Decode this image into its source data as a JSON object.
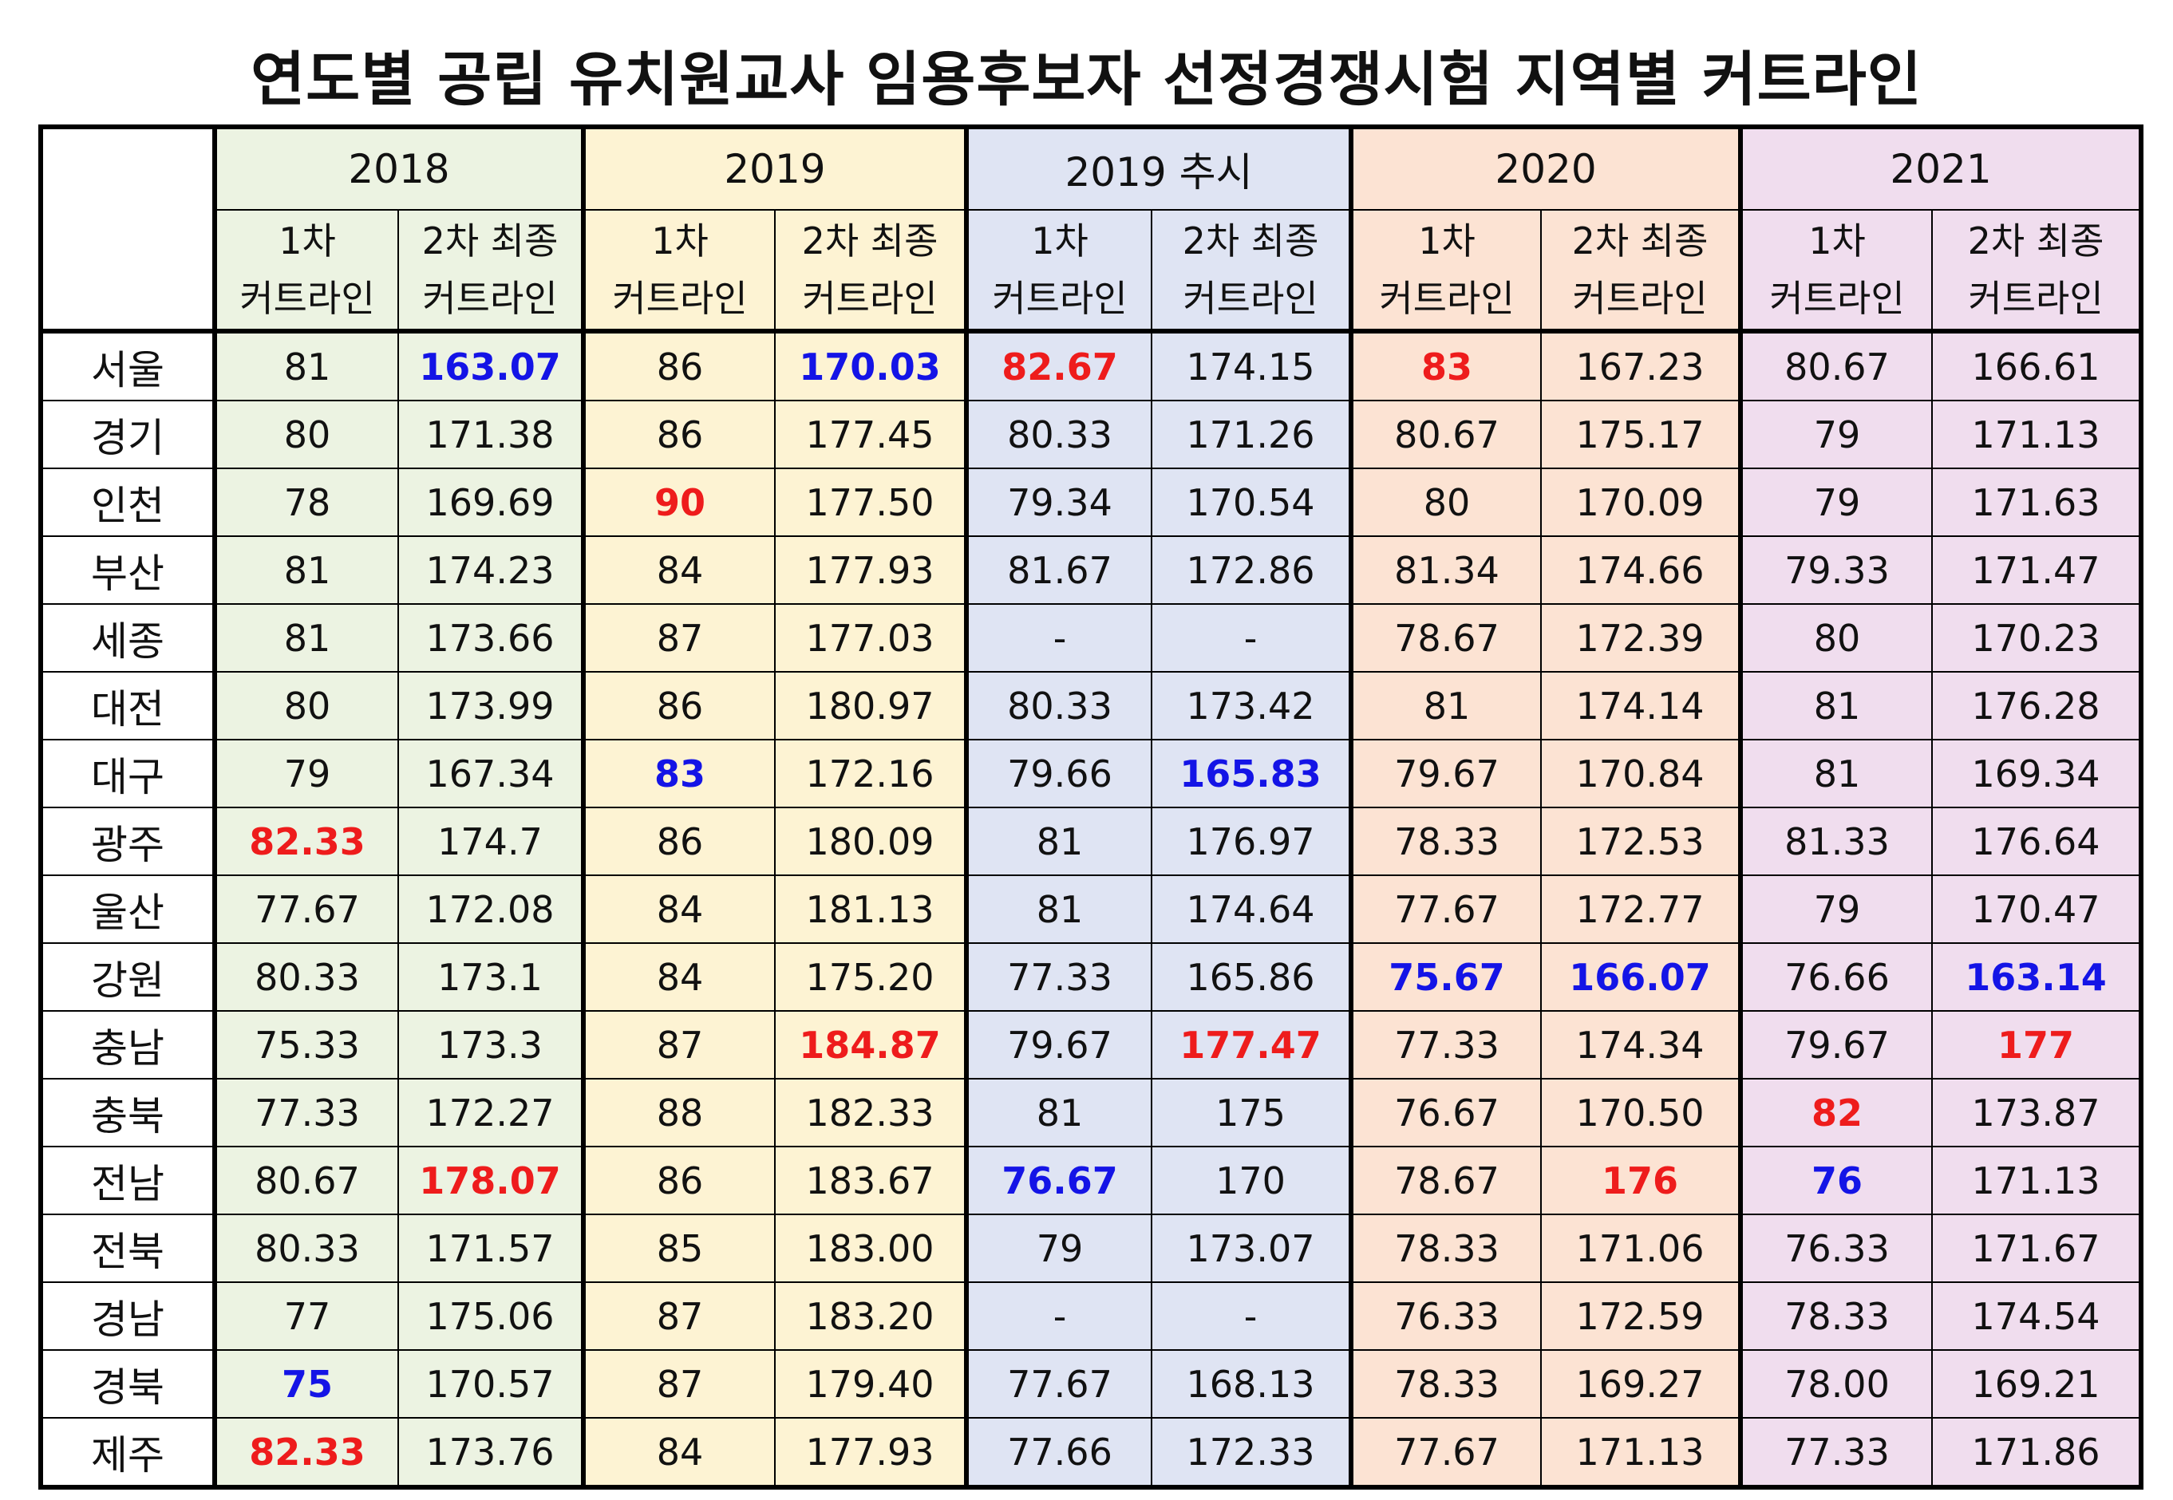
{
  "title": "연도별 공립 유치원교사 임용후보자 선정경쟁시험 지역별 커트라인",
  "years": [
    "2018",
    "2019",
    "2019 추시",
    "2020",
    "2021"
  ],
  "sub_headers": {
    "first_line1": "1차",
    "first_line2": "커트라인",
    "second_line1": "2차 최종",
    "second_line2": "커트라인"
  },
  "colors": {
    "col_2018": "#ecf3e2",
    "col_2019": "#fdf3d3",
    "col_2019_extra": "#dfe4f3",
    "col_2020": "#fce3d3",
    "col_2021": "#f0ddee",
    "highlight_max": "#ee1c1c",
    "highlight_min": "#1414e6"
  },
  "rows": [
    {
      "region": "서울",
      "values": [
        {
          "v": "81"
        },
        {
          "v": "163.07",
          "h": "blue"
        },
        {
          "v": "86"
        },
        {
          "v": "170.03",
          "h": "blue"
        },
        {
          "v": "82.67",
          "h": "red"
        },
        {
          "v": "174.15"
        },
        {
          "v": "83",
          "h": "red"
        },
        {
          "v": "167.23"
        },
        {
          "v": "80.67"
        },
        {
          "v": "166.61"
        }
      ]
    },
    {
      "region": "경기",
      "values": [
        {
          "v": "80"
        },
        {
          "v": "171.38"
        },
        {
          "v": "86"
        },
        {
          "v": "177.45"
        },
        {
          "v": "80.33"
        },
        {
          "v": "171.26"
        },
        {
          "v": "80.67"
        },
        {
          "v": "175.17"
        },
        {
          "v": "79"
        },
        {
          "v": "171.13"
        }
      ]
    },
    {
      "region": "인천",
      "values": [
        {
          "v": "78"
        },
        {
          "v": "169.69"
        },
        {
          "v": "90",
          "h": "red"
        },
        {
          "v": "177.50"
        },
        {
          "v": "79.34"
        },
        {
          "v": "170.54"
        },
        {
          "v": "80"
        },
        {
          "v": "170.09"
        },
        {
          "v": "79"
        },
        {
          "v": "171.63"
        }
      ]
    },
    {
      "region": "부산",
      "values": [
        {
          "v": "81"
        },
        {
          "v": "174.23"
        },
        {
          "v": "84"
        },
        {
          "v": "177.93"
        },
        {
          "v": "81.67"
        },
        {
          "v": "172.86"
        },
        {
          "v": "81.34"
        },
        {
          "v": "174.66"
        },
        {
          "v": "79.33"
        },
        {
          "v": "171.47"
        }
      ]
    },
    {
      "region": "세종",
      "values": [
        {
          "v": "81"
        },
        {
          "v": "173.66"
        },
        {
          "v": "87"
        },
        {
          "v": "177.03"
        },
        {
          "v": "-"
        },
        {
          "v": "-"
        },
        {
          "v": "78.67"
        },
        {
          "v": "172.39"
        },
        {
          "v": "80"
        },
        {
          "v": "170.23"
        }
      ]
    },
    {
      "region": "대전",
      "values": [
        {
          "v": "80"
        },
        {
          "v": "173.99"
        },
        {
          "v": "86"
        },
        {
          "v": "180.97"
        },
        {
          "v": "80.33"
        },
        {
          "v": "173.42"
        },
        {
          "v": "81"
        },
        {
          "v": "174.14"
        },
        {
          "v": "81"
        },
        {
          "v": "176.28"
        }
      ]
    },
    {
      "region": "대구",
      "values": [
        {
          "v": "79"
        },
        {
          "v": "167.34"
        },
        {
          "v": "83",
          "h": "blue"
        },
        {
          "v": "172.16"
        },
        {
          "v": "79.66"
        },
        {
          "v": "165.83",
          "h": "blue"
        },
        {
          "v": "79.67"
        },
        {
          "v": "170.84"
        },
        {
          "v": "81"
        },
        {
          "v": "169.34"
        }
      ]
    },
    {
      "region": "광주",
      "values": [
        {
          "v": "82.33",
          "h": "red"
        },
        {
          "v": "174.7"
        },
        {
          "v": "86"
        },
        {
          "v": "180.09"
        },
        {
          "v": "81"
        },
        {
          "v": "176.97"
        },
        {
          "v": "78.33"
        },
        {
          "v": "172.53"
        },
        {
          "v": "81.33"
        },
        {
          "v": "176.64"
        }
      ]
    },
    {
      "region": "울산",
      "values": [
        {
          "v": "77.67"
        },
        {
          "v": "172.08"
        },
        {
          "v": "84"
        },
        {
          "v": "181.13"
        },
        {
          "v": "81"
        },
        {
          "v": "174.64"
        },
        {
          "v": "77.67"
        },
        {
          "v": "172.77"
        },
        {
          "v": "79"
        },
        {
          "v": "170.47"
        }
      ]
    },
    {
      "region": "강원",
      "values": [
        {
          "v": "80.33"
        },
        {
          "v": "173.1"
        },
        {
          "v": "84"
        },
        {
          "v": "175.20"
        },
        {
          "v": "77.33"
        },
        {
          "v": "165.86"
        },
        {
          "v": "75.67",
          "h": "blue"
        },
        {
          "v": "166.07",
          "h": "blue"
        },
        {
          "v": "76.66"
        },
        {
          "v": "163.14",
          "h": "blue"
        }
      ]
    },
    {
      "region": "충남",
      "values": [
        {
          "v": "75.33"
        },
        {
          "v": "173.3"
        },
        {
          "v": "87"
        },
        {
          "v": "184.87",
          "h": "red"
        },
        {
          "v": "79.67"
        },
        {
          "v": "177.47",
          "h": "red"
        },
        {
          "v": "77.33"
        },
        {
          "v": "174.34"
        },
        {
          "v": "79.67"
        },
        {
          "v": "177",
          "h": "red"
        }
      ]
    },
    {
      "region": "충북",
      "values": [
        {
          "v": "77.33"
        },
        {
          "v": "172.27"
        },
        {
          "v": "88"
        },
        {
          "v": "182.33"
        },
        {
          "v": "81"
        },
        {
          "v": "175"
        },
        {
          "v": "76.67"
        },
        {
          "v": "170.50"
        },
        {
          "v": "82",
          "h": "red"
        },
        {
          "v": "173.87"
        }
      ]
    },
    {
      "region": "전남",
      "values": [
        {
          "v": "80.67"
        },
        {
          "v": "178.07",
          "h": "red"
        },
        {
          "v": "86"
        },
        {
          "v": "183.67"
        },
        {
          "v": "76.67",
          "h": "blue"
        },
        {
          "v": "170"
        },
        {
          "v": "78.67"
        },
        {
          "v": "176",
          "h": "red"
        },
        {
          "v": "76",
          "h": "blue"
        },
        {
          "v": "171.13"
        }
      ]
    },
    {
      "region": "전북",
      "values": [
        {
          "v": "80.33"
        },
        {
          "v": "171.57"
        },
        {
          "v": "85"
        },
        {
          "v": "183.00"
        },
        {
          "v": "79"
        },
        {
          "v": "173.07"
        },
        {
          "v": "78.33"
        },
        {
          "v": "171.06"
        },
        {
          "v": "76.33"
        },
        {
          "v": "171.67"
        }
      ]
    },
    {
      "region": "경남",
      "values": [
        {
          "v": "77"
        },
        {
          "v": "175.06"
        },
        {
          "v": "87"
        },
        {
          "v": "183.20"
        },
        {
          "v": "-"
        },
        {
          "v": "-"
        },
        {
          "v": "76.33"
        },
        {
          "v": "172.59"
        },
        {
          "v": "78.33"
        },
        {
          "v": "174.54"
        }
      ]
    },
    {
      "region": "경북",
      "values": [
        {
          "v": "75",
          "h": "blue"
        },
        {
          "v": "170.57"
        },
        {
          "v": "87"
        },
        {
          "v": "179.40"
        },
        {
          "v": "77.67"
        },
        {
          "v": "168.13"
        },
        {
          "v": "78.33"
        },
        {
          "v": "169.27"
        },
        {
          "v": "78.00"
        },
        {
          "v": "169.21"
        }
      ]
    },
    {
      "region": "제주",
      "values": [
        {
          "v": "82.33",
          "h": "red"
        },
        {
          "v": "173.76"
        },
        {
          "v": "84"
        },
        {
          "v": "177.93"
        },
        {
          "v": "77.66"
        },
        {
          "v": "172.33"
        },
        {
          "v": "77.67"
        },
        {
          "v": "171.13"
        },
        {
          "v": "77.33"
        },
        {
          "v": "171.86"
        }
      ]
    }
  ]
}
